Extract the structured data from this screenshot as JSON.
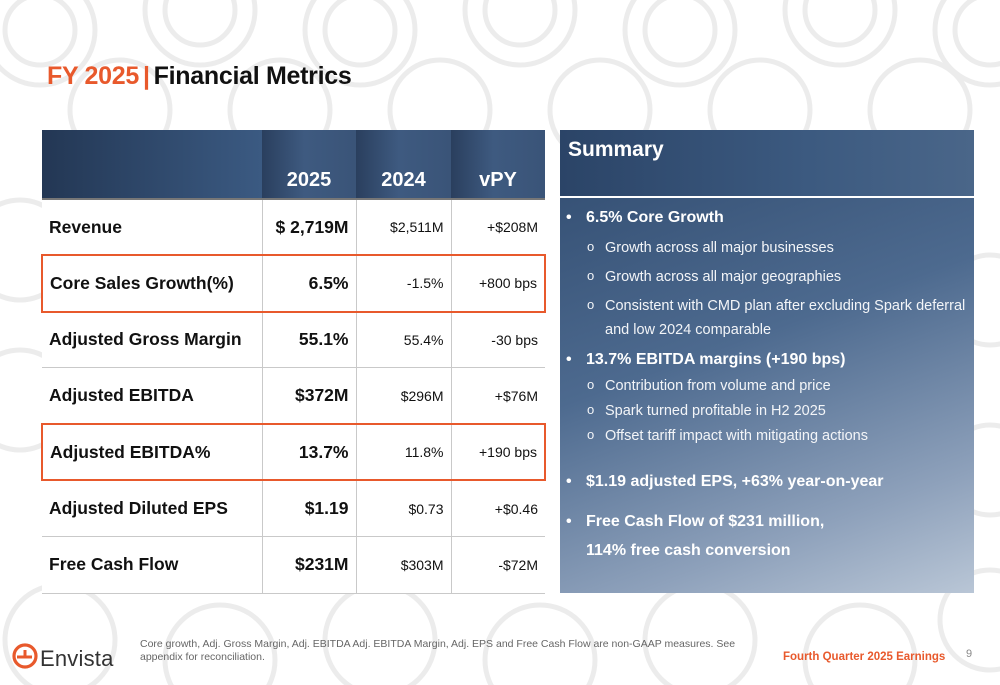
{
  "slide": {
    "title_year": "FY 2025",
    "title_sep": "|",
    "title_text": "Financial Metrics"
  },
  "table": {
    "headers": [
      "",
      "2025",
      "2024",
      "vPY"
    ],
    "rows": [
      {
        "label": "Revenue",
        "v2025": "$  2,719M",
        "v2024": "$2,511M",
        "vpy": "+$208M",
        "highlight": false
      },
      {
        "label": "Core Sales Growth(%)",
        "v2025": "6.5%",
        "v2024": "-1.5%",
        "vpy": "+800 bps",
        "highlight": true
      },
      {
        "label": "Adjusted Gross Margin",
        "v2025": "55.1%",
        "v2024": "55.4%",
        "vpy": "-30 bps",
        "highlight": false
      },
      {
        "label": "Adjusted EBITDA",
        "v2025": "$372M",
        "v2024": "$296M",
        "vpy": "+$76M",
        "highlight": false
      },
      {
        "label": "Adjusted EBITDA%",
        "v2025": "13.7%",
        "v2024": "11.8%",
        "vpy": "+190 bps",
        "highlight": true
      },
      {
        "label": "Adjusted Diluted EPS",
        "v2025": "$1.19",
        "v2024": "$0.73",
        "vpy": "+$0.46",
        "highlight": false
      },
      {
        "label": "Free Cash Flow",
        "v2025": "$231M",
        "v2024": "$303M",
        "vpy": "-$72M",
        "highlight": false
      }
    ]
  },
  "summary": {
    "title": "Summary",
    "b1": "6.5% Core Growth",
    "b1_s1": "Growth across all major businesses",
    "b1_s2": "Growth across all major geographies",
    "b1_s3": "Consistent with CMD plan after excluding Spark deferral and low 2024 comparable",
    "b2": "13.7% EBITDA margins (+190 bps)",
    "b2_s1": "Contribution from volume and price",
    "b2_s2": "Spark turned profitable in H2 2025",
    "b2_s3": "Offset tariff impact with mitigating actions",
    "b3": "$1.19 adjusted EPS, +63% year-on-year",
    "b4_l1": "Free Cash Flow of $231 million,",
    "b4_l2": "114% free cash conversion"
  },
  "footer": {
    "brand": "Envista",
    "note": "Core growth, Adj. Gross Margin, Adj. EBITDA Adj. EBITDA Margin, Adj. EPS and Free Cash Flow are non-GAAP measures.  See appendix for reconciliation.",
    "event": "Fourth Quarter 2025 Earnings",
    "page": "9"
  },
  "colors": {
    "accent": "#E8592C",
    "header_navy": "#2f4a6e"
  }
}
